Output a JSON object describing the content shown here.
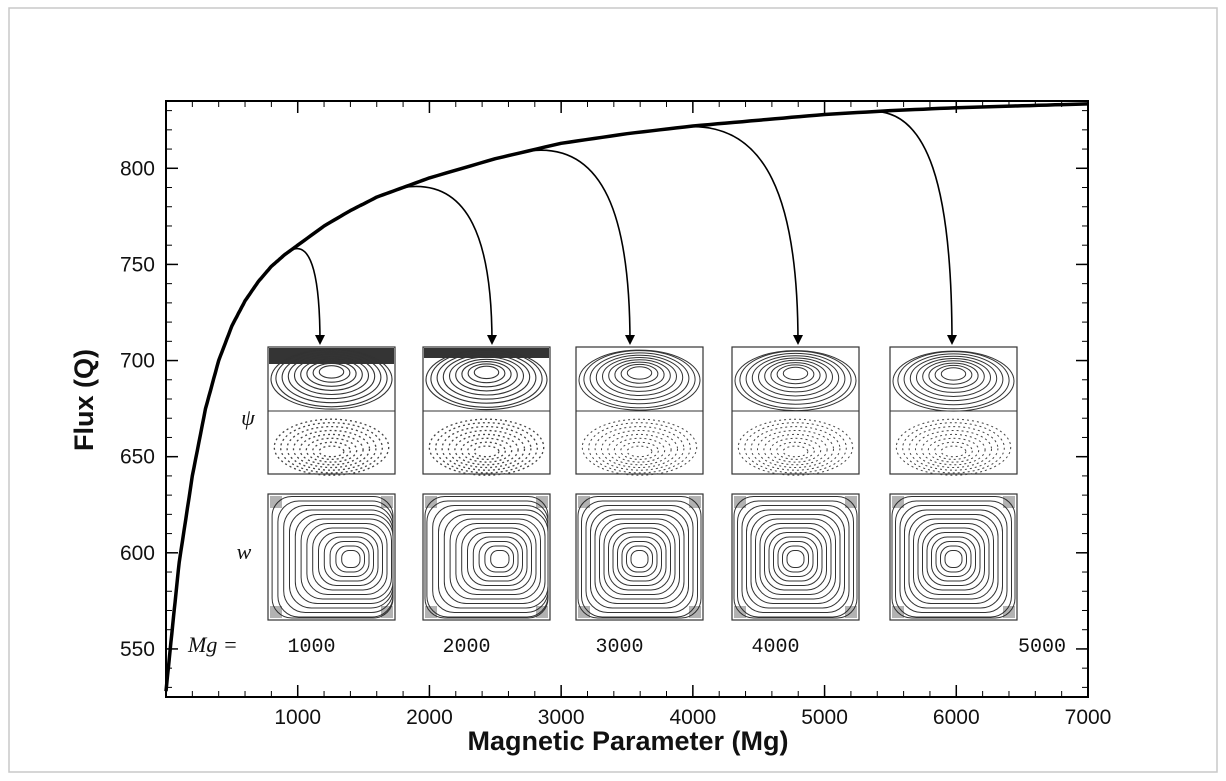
{
  "chart_data": {
    "type": "line",
    "title": "",
    "xlabel": "Magnetic Parameter (Mg)",
    "ylabel": "Flux (Q)",
    "xlim": [
      0,
      7000
    ],
    "ylim": [
      525,
      835
    ],
    "x_ticks": [
      1000,
      2000,
      3000,
      4000,
      5000,
      6000,
      7000
    ],
    "y_ticks": [
      550,
      600,
      650,
      700,
      750,
      800
    ],
    "grid": false,
    "series": [
      {
        "x": [
          0,
          50,
          100,
          200,
          300,
          400,
          500,
          600,
          700,
          800,
          900,
          1000,
          1200,
          1400,
          1600,
          1800,
          2000,
          2500,
          3000,
          3500,
          4000,
          4500,
          5000,
          5500,
          6000,
          6500,
          7000
        ],
        "y": [
          528,
          562,
          595,
          640,
          675,
          700,
          718,
          731,
          741,
          749,
          755,
          760,
          770,
          778,
          785,
          790,
          795,
          805,
          813,
          818,
          822,
          825,
          828,
          830,
          831.5,
          832.5,
          833.5
        ]
      }
    ],
    "arrows": [
      {
        "from_mg": 950,
        "target": 1
      },
      {
        "from_mg": 1800,
        "target": 2
      },
      {
        "from_mg": 2750,
        "target": 3
      },
      {
        "from_mg": 3900,
        "target": 4
      },
      {
        "from_mg": 5300,
        "target": 5
      }
    ],
    "insets": {
      "row_labels": [
        "ψ",
        "w"
      ],
      "mg_prefix": "Mg =",
      "mg_values": [
        "1000",
        "2000",
        "3000",
        "4000",
        "5000"
      ]
    }
  }
}
